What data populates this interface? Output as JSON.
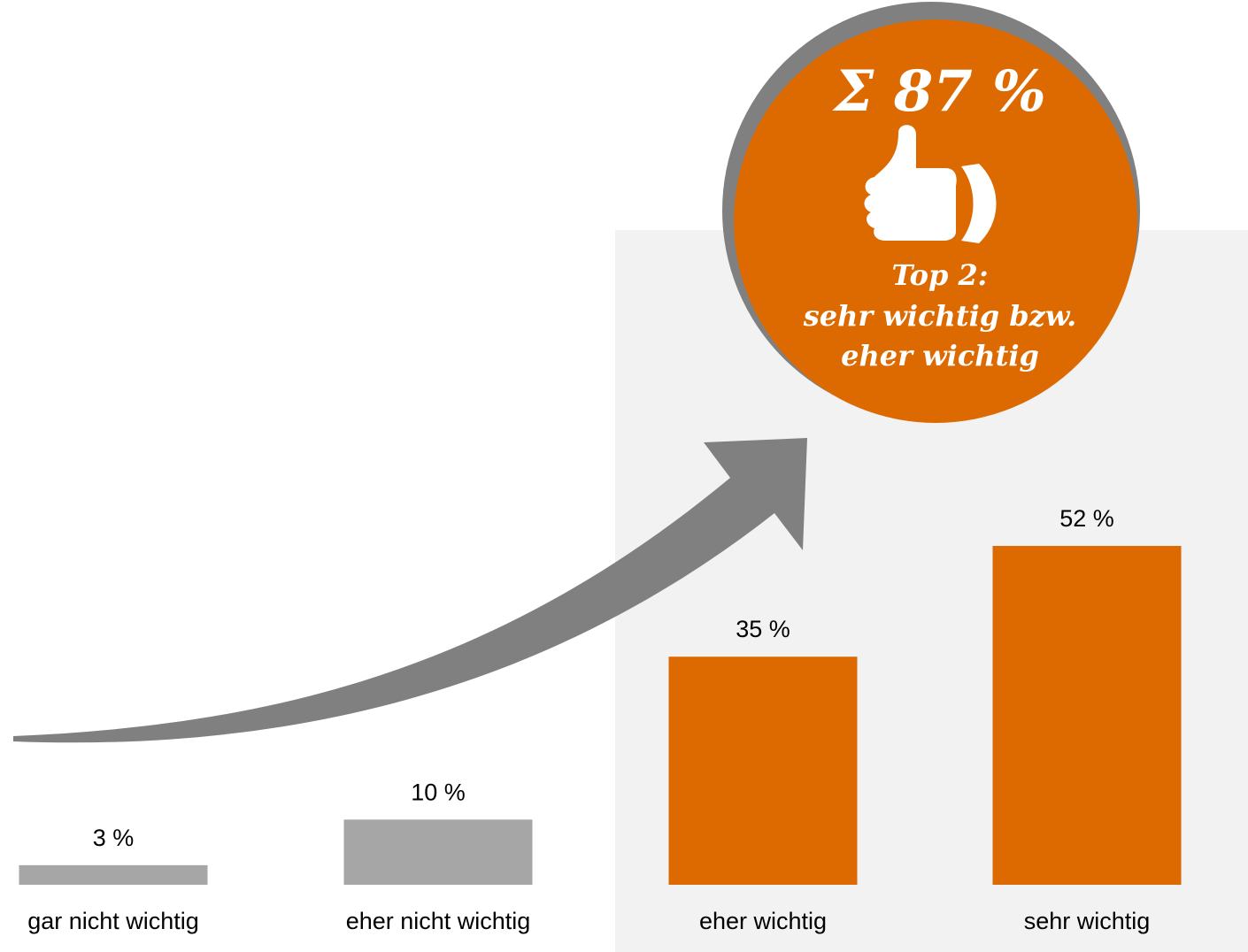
{
  "chart_data": {
    "type": "bar",
    "categories": [
      "gar nicht wichtig",
      "eher nicht wichtig",
      "eher wichtig",
      "sehr wichtig"
    ],
    "values": [
      3,
      10,
      35,
      52
    ],
    "value_labels": [
      "3 %",
      "10 %",
      "35 %",
      "52 %"
    ],
    "colors": [
      "#a6a6a6",
      "#a6a6a6",
      "#dd6a00",
      "#dd6a00"
    ],
    "annotation": {
      "sum": "Σ 87 %",
      "lines": [
        "Top 2:",
        "sehr wichtig bzw.",
        "eher wichtig"
      ]
    }
  }
}
